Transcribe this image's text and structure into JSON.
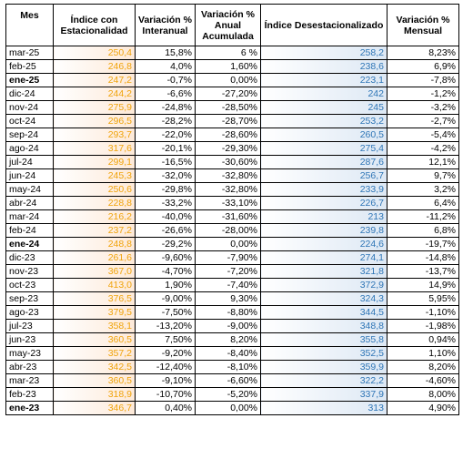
{
  "colors": {
    "estacionalidad": "#f0a30a",
    "desestacionalizado": "#2e75b6"
  },
  "headers": [
    "Mes",
    "Índice con Estacionalidad",
    "Variación % Interanual",
    "Variación % Anual Acumulada",
    "Índice Desestacionalizado",
    "Variación % Mensual"
  ],
  "rows": [
    {
      "mes": "mar-25",
      "est": "250,4",
      "inter": "15,8%",
      "acum": "6 %",
      "des": "258,2",
      "mens": "8,23%",
      "bold": false
    },
    {
      "mes": "feb-25",
      "est": "246,8",
      "inter": "4,0%",
      "acum": "1,60%",
      "des": "238,6",
      "mens": "6,9%",
      "bold": false
    },
    {
      "mes": "ene-25",
      "est": "247,2",
      "inter": "-0,7%",
      "acum": "0,00%",
      "des": "223,1",
      "mens": "-7,8%",
      "bold": true
    },
    {
      "mes": "dic-24",
      "est": "244,2",
      "inter": "-6,6%",
      "acum": "-27,20%",
      "des": "242",
      "mens": "-1,2%",
      "bold": false
    },
    {
      "mes": "nov-24",
      "est": "275,9",
      "inter": "-24,8%",
      "acum": "-28,50%",
      "des": "245",
      "mens": "-3,2%",
      "bold": false
    },
    {
      "mes": "oct-24",
      "est": "296,5",
      "inter": "-28,2%",
      "acum": "-28,70%",
      "des": "253,2",
      "mens": "-2,7%",
      "bold": false
    },
    {
      "mes": "sep-24",
      "est": "293,7",
      "inter": "-22,0%",
      "acum": "-28,60%",
      "des": "260,5",
      "mens": "-5,4%",
      "bold": false
    },
    {
      "mes": "ago-24",
      "est": "317,6",
      "inter": "-20,1%",
      "acum": "-29,30%",
      "des": "275,4",
      "mens": "-4,2%",
      "bold": false
    },
    {
      "mes": "jul-24",
      "est": "299,1",
      "inter": "-16,5%",
      "acum": "-30,60%",
      "des": "287,6",
      "mens": "12,1%",
      "bold": false
    },
    {
      "mes": "jun-24",
      "est": "245,3",
      "inter": "-32,0%",
      "acum": "-32,80%",
      "des": "256,7",
      "mens": "9,7%",
      "bold": false
    },
    {
      "mes": "may-24",
      "est": "250,6",
      "inter": "-29,8%",
      "acum": "-32,80%",
      "des": "233,9",
      "mens": "3,2%",
      "bold": false
    },
    {
      "mes": "abr-24",
      "est": "228,8",
      "inter": "-33,2%",
      "acum": "-33,10%",
      "des": "226,7",
      "mens": "6,4%",
      "bold": false
    },
    {
      "mes": "mar-24",
      "est": "216,2",
      "inter": "-40,0%",
      "acum": "-31,60%",
      "des": "213",
      "mens": "-11,2%",
      "bold": false
    },
    {
      "mes": "feb-24",
      "est": "237,2",
      "inter": "-26,6%",
      "acum": "-28,00%",
      "des": "239,8",
      "mens": "6,8%",
      "bold": false
    },
    {
      "mes": "ene-24",
      "est": "248,8",
      "inter": "-29,2%",
      "acum": "0,00%",
      "des": "224,6",
      "mens": "-19,7%",
      "bold": true
    },
    {
      "mes": "dic-23",
      "est": "261,6",
      "inter": "-9,60%",
      "acum": "-7,90%",
      "des": "274,1",
      "mens": "-14,8%",
      "bold": false
    },
    {
      "mes": "nov-23",
      "est": "367,0",
      "inter": "-4,70%",
      "acum": "-7,20%",
      "des": "321,8",
      "mens": "-13,7%",
      "bold": false
    },
    {
      "mes": "oct-23",
      "est": "413,0",
      "inter": "1,90%",
      "acum": "-7,40%",
      "des": "372,9",
      "mens": "14,9%",
      "bold": false
    },
    {
      "mes": "sep-23",
      "est": "376,5",
      "inter": "-9,00%",
      "acum": "9,30%",
      "des": "324,3",
      "mens": "5,95%",
      "bold": false
    },
    {
      "mes": "ago-23",
      "est": "379,5",
      "inter": "-7,50%",
      "acum": "-8,80%",
      "des": "344,5",
      "mens": "-1,10%",
      "bold": false
    },
    {
      "mes": "jul-23",
      "est": "358,1",
      "inter": "-13,20%",
      "acum": "-9,00%",
      "des": "348,8",
      "mens": "-1,98%",
      "bold": false
    },
    {
      "mes": "jun-23",
      "est": "360,5",
      "inter": "7,50%",
      "acum": "8,20%",
      "des": "355,8",
      "mens": "0,94%",
      "bold": false
    },
    {
      "mes": "may-23",
      "est": "357,2",
      "inter": "-9,20%",
      "acum": "-8,40%",
      "des": "352,5",
      "mens": "1,10%",
      "bold": false
    },
    {
      "mes": "abr-23",
      "est": "342,5",
      "inter": "-12,40%",
      "acum": "-8,10%",
      "des": "359,9",
      "mens": "8,20%",
      "bold": false
    },
    {
      "mes": "mar-23",
      "est": "360,5",
      "inter": "-9,10%",
      "acum": "-6,60%",
      "des": "322,2",
      "mens": "-4,60%",
      "bold": false
    },
    {
      "mes": "feb-23",
      "est": "318,9",
      "inter": "-10,70%",
      "acum": "-5,20%",
      "des": "337,9",
      "mens": "8,00%",
      "bold": false
    },
    {
      "mes": "ene-23",
      "est": "346,7",
      "inter": "0,40%",
      "acum": "0,00%",
      "des": "313",
      "mens": "4,90%",
      "bold": true
    }
  ]
}
